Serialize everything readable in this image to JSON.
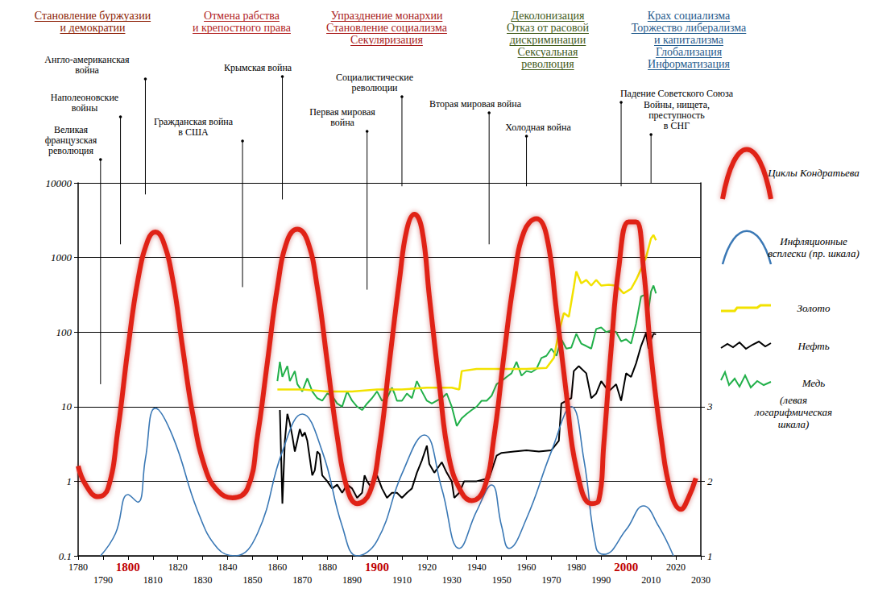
{
  "chart_data": {
    "type": "line",
    "headers": [
      [
        "Становление буржуазии",
        "и демократии"
      ],
      [
        "Отмена рабства",
        "и крепостного права"
      ],
      [
        "Упразднение монархии",
        "Становление социализма",
        "Секуляризация"
      ],
      [
        "Деколонизация",
        "Отказ от расовой",
        "дискриминации",
        "Сексуальная",
        "революция"
      ],
      [
        "Крах социализма",
        "Торжество либерализма",
        "и капитализма",
        "Глобализация",
        "Информатизация"
      ]
    ],
    "annotations": [
      {
        "text": [
          "Великая",
          "французская",
          "революция"
        ],
        "x": 1789,
        "y": 20
      },
      {
        "text": [
          "Наполеоновские",
          "войны"
        ],
        "x": 1797,
        "y": 1500
      },
      {
        "text": [
          "Англо-американская",
          "война"
        ],
        "x": 1807,
        "y": 7000
      },
      {
        "text": [
          "Гражданская война",
          "в США"
        ],
        "x": 1846,
        "y": 400
      },
      {
        "text": [
          "Крымская война"
        ],
        "x": 1862,
        "y": 6000
      },
      {
        "text": [
          "Первая мировая",
          "война"
        ],
        "x": 1896,
        "y": 370
      },
      {
        "text": [
          "Социалистические",
          "революции"
        ],
        "x": 1910,
        "y": 9000
      },
      {
        "text": [
          "Вторая мировая война"
        ],
        "x": 1945,
        "y": 1500
      },
      {
        "text": [
          "Холодная война"
        ],
        "x": 1960,
        "y": 9000
      },
      {
        "text": [
          "Падение Советского Союза"
        ],
        "x": 1998,
        "y": 9000
      },
      {
        "text": [
          "Войны, нищета,",
          "преступность",
          "в СНГ"
        ],
        "x": 2010,
        "y": 10000
      }
    ],
    "xlim": [
      1780,
      2030
    ],
    "xticks": [
      1780,
      1790,
      1800,
      1810,
      1820,
      1830,
      1840,
      1850,
      1860,
      1870,
      1880,
      1890,
      1900,
      1910,
      1920,
      1930,
      1940,
      1950,
      1960,
      1970,
      1980,
      1990,
      2000,
      2010,
      2020,
      2030
    ],
    "ylim": [
      0.1,
      10000
    ],
    "yticks": [
      0.1,
      1,
      10,
      100,
      1000,
      10000
    ],
    "y2lim": [
      1,
      6
    ],
    "y2ticks": [
      1,
      2,
      3
    ],
    "log": "y",
    "grid": true,
    "legend": "right",
    "legend_note": "(левая логарифмическая шкала)",
    "series": [
      {
        "name": "Циклы Кондратьева",
        "color": "#e02418",
        "line_style": "smooth",
        "x": [
          1780,
          1783,
          1788,
          1792,
          1796,
          1800,
          1804,
          1808,
          1811,
          1814,
          1818,
          1822,
          1826,
          1831,
          1836,
          1842,
          1848,
          1852,
          1856,
          1860,
          1864,
          1868,
          1872,
          1876,
          1880,
          1884,
          1888,
          1892,
          1897,
          1901,
          1905,
          1909,
          1912,
          1915,
          1918,
          1921,
          1925,
          1929,
          1934,
          1938,
          1943,
          1947,
          1951,
          1955,
          1959,
          1964,
          1968,
          1972,
          1976,
          1980,
          1986,
          1989,
          1991,
          1994,
          1997,
          2001,
          2004,
          2007,
          2010,
          2014,
          2018,
          2022,
          2025,
          2028
        ],
        "values": [
          1.6,
          0.9,
          0.62,
          0.8,
          5,
          60,
          500,
          1700,
          2200,
          1700,
          500,
          60,
          8,
          1.5,
          0.75,
          0.6,
          0.8,
          4,
          40,
          400,
          1700,
          2400,
          1700,
          400,
          40,
          4,
          0.8,
          0.5,
          0.7,
          3,
          40,
          500,
          2400,
          3800,
          2400,
          300,
          20,
          2,
          0.7,
          0.55,
          0.8,
          4,
          50,
          500,
          2200,
          3300,
          2000,
          200,
          15,
          1.5,
          0.5,
          0.55,
          3,
          60,
          700,
          3000,
          3000,
          700,
          50,
          4,
          0.7,
          0.42,
          0.6,
          1.1
        ]
      },
      {
        "name": "Инфляционные всплески (пр. шкала)",
        "color": "#3a78b5",
        "line_style": "smooth",
        "axis": "y2",
        "x": [
          1789,
          1795,
          1800,
          1804,
          1807,
          1811,
          1818,
          1828,
          1836,
          1843,
          1852,
          1862,
          1870,
          1878,
          1886,
          1892,
          1900,
          1910,
          1919,
          1926,
          1933,
          1940,
          1946,
          1950,
          1953,
          1960,
          1970,
          1978,
          1983,
          1988,
          1991,
          2000,
          2007,
          2013,
          2019
        ],
        "values": [
          1.0,
          1.3,
          1.82,
          1.72,
          2.3,
          2.98,
          2.6,
          1.6,
          1.1,
          1.0,
          1.3,
          2.4,
          2.9,
          2.4,
          1.4,
          1.0,
          1.2,
          2.1,
          2.62,
          1.9,
          1.1,
          1.6,
          1.95,
          1.4,
          1.1,
          1.5,
          2.4,
          3.0,
          2.3,
          1.1,
          1.02,
          1.35,
          1.67,
          1.4,
          1.0
        ]
      },
      {
        "name": "Золото",
        "color": "#f2e200",
        "line_style": "solid",
        "x": [
          1860,
          1870,
          1880,
          1890,
          1900,
          1910,
          1920,
          1930,
          1933,
          1934,
          1940,
          1950,
          1960,
          1968,
          1971,
          1973,
          1975,
          1977,
          1979,
          1980,
          1982,
          1984,
          1986,
          1988,
          1990,
          1993,
          1996,
          1999,
          2002,
          2004,
          2006,
          2008,
          2010,
          2011,
          2012
        ],
        "values": [
          17,
          17,
          16,
          16,
          17,
          17,
          18,
          18,
          17,
          30,
          32,
          32,
          32,
          33,
          45,
          100,
          180,
          160,
          400,
          650,
          450,
          500,
          420,
          500,
          420,
          430,
          420,
          330,
          380,
          500,
          700,
          1000,
          1800,
          2000,
          1700
        ]
      },
      {
        "name": "Нефть",
        "color": "#000000",
        "line_style": "solid",
        "x": [
          1861,
          1862,
          1863,
          1864,
          1865,
          1866,
          1867,
          1868,
          1869,
          1870,
          1871,
          1872,
          1874,
          1875,
          1876,
          1877,
          1878,
          1880,
          1882,
          1884,
          1886,
          1888,
          1890,
          1892,
          1894,
          1895,
          1896,
          1898,
          1900,
          1902,
          1904,
          1906,
          1908,
          1910,
          1912,
          1914,
          1916,
          1918,
          1920,
          1921,
          1923,
          1926,
          1928,
          1930,
          1931,
          1933,
          1935,
          1940,
          1945,
          1948,
          1950,
          1955,
          1960,
          1965,
          1970,
          1973,
          1974,
          1978,
          1979,
          1981,
          1984,
          1986,
          1988,
          1990,
          1993,
          1996,
          1998,
          2000,
          2002,
          2004,
          2006,
          2008,
          2009,
          2010,
          2011,
          2012
        ],
        "values": [
          9,
          0.5,
          3.5,
          8,
          6,
          4,
          2.5,
          3.5,
          5,
          4,
          4.5,
          3.5,
          1.2,
          1.4,
          2.5,
          2.3,
          1.2,
          1,
          0.8,
          0.9,
          0.7,
          0.9,
          0.8,
          0.6,
          0.7,
          1.2,
          1,
          0.8,
          1.2,
          0.8,
          0.6,
          0.7,
          0.7,
          0.6,
          0.7,
          0.8,
          1.3,
          1.9,
          3,
          1.7,
          1.3,
          1.8,
          1.3,
          1,
          0.6,
          0.7,
          1,
          1,
          1.1,
          2.2,
          2.4,
          2.5,
          2.6,
          2.5,
          2.6,
          3.5,
          11,
          13,
          30,
          35,
          28,
          13,
          15,
          22,
          16,
          20,
          12,
          28,
          25,
          38,
          65,
          97,
          60,
          79,
          95,
          93
        ]
      },
      {
        "name": "Медь",
        "color": "#22b04a",
        "line_style": "solid",
        "x": [
          1860,
          1861,
          1862,
          1864,
          1865,
          1867,
          1868,
          1870,
          1872,
          1874,
          1876,
          1878,
          1880,
          1882,
          1884,
          1886,
          1888,
          1890,
          1892,
          1894,
          1896,
          1898,
          1900,
          1902,
          1904,
          1906,
          1907,
          1908,
          1910,
          1912,
          1914,
          1916,
          1918,
          1920,
          1922,
          1924,
          1926,
          1928,
          1930,
          1932,
          1934,
          1936,
          1938,
          1940,
          1942,
          1944,
          1946,
          1948,
          1950,
          1952,
          1954,
          1956,
          1958,
          1960,
          1962,
          1964,
          1966,
          1968,
          1970,
          1972,
          1974,
          1976,
          1978,
          1980,
          1982,
          1984,
          1986,
          1988,
          1990,
          1992,
          1994,
          1996,
          1998,
          2000,
          2002,
          2004,
          2006,
          2008,
          2009,
          2010,
          2011,
          2012
        ],
        "values": [
          22,
          40,
          25,
          35,
          22,
          30,
          20,
          16,
          24,
          16,
          13,
          12,
          15,
          14,
          11,
          10,
          16,
          12,
          10,
          9,
          11,
          13,
          16,
          12,
          13,
          18,
          15,
          12,
          12,
          15,
          13,
          22,
          16,
          12,
          11,
          12,
          13,
          15,
          10,
          5.5,
          7,
          8,
          9,
          10,
          12,
          12,
          14,
          20,
          22,
          25,
          28,
          40,
          26,
          30,
          29,
          32,
          45,
          48,
          60,
          48,
          80,
          60,
          62,
          95,
          70,
          65,
          60,
          110,
          115,
          100,
          105,
          100,
          75,
          80,
          70,
          130,
          300,
          320,
          200,
          350,
          420,
          330
        ]
      }
    ]
  }
}
